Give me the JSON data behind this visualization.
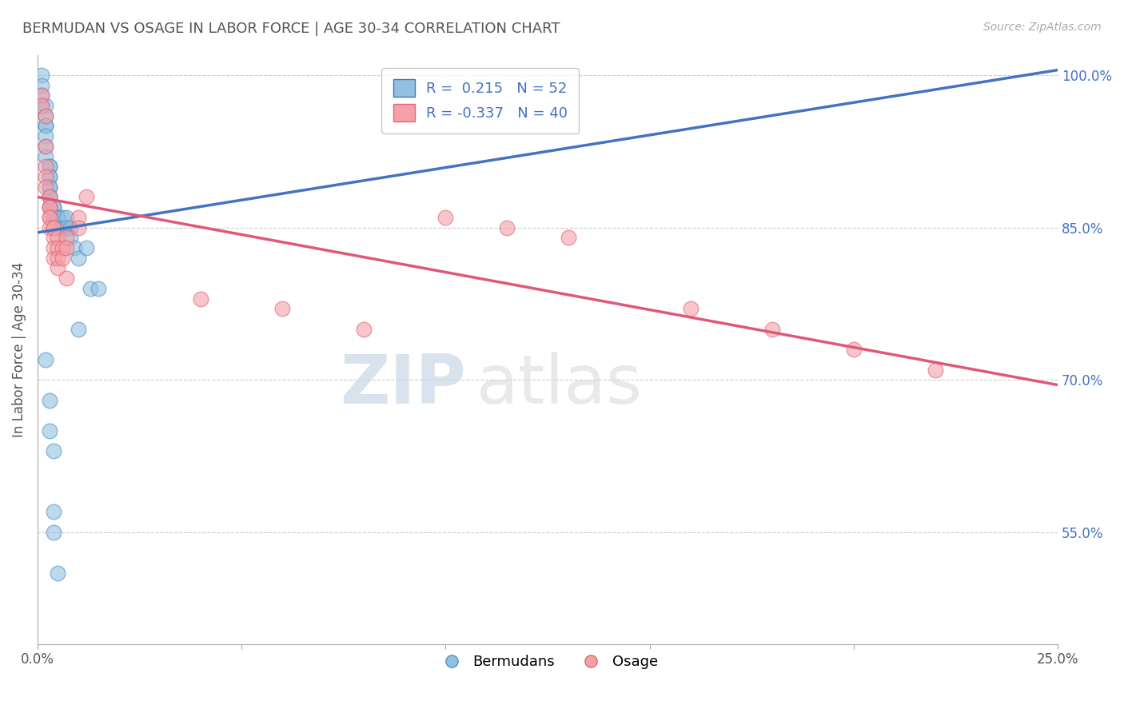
{
  "title": "BERMUDAN VS OSAGE IN LABOR FORCE | AGE 30-34 CORRELATION CHART",
  "source": "Source: ZipAtlas.com",
  "ylabel": "In Labor Force | Age 30-34",
  "xlim": [
    0.0,
    0.25
  ],
  "ylim": [
    0.44,
    1.02
  ],
  "xticks": [
    0.0,
    0.05,
    0.1,
    0.15,
    0.2,
    0.25
  ],
  "xticklabels": [
    "0.0%",
    "",
    "",
    "",
    "",
    "25.0%"
  ],
  "yticks_right": [
    0.55,
    0.7,
    0.85,
    1.0
  ],
  "ytick_right_labels": [
    "55.0%",
    "70.0%",
    "85.0%",
    "100.0%"
  ],
  "blue_color": "#92c0e0",
  "pink_color": "#f4a0a8",
  "blue_edge_color": "#5590c8",
  "pink_edge_color": "#e06878",
  "blue_line_color": "#4472c4",
  "pink_line_color": "#e05878",
  "R_blue": 0.215,
  "N_blue": 52,
  "R_pink": -0.337,
  "N_pink": 40,
  "legend_label_blue": "Bermudans",
  "legend_label_pink": "Osage",
  "blue_x": [
    0.001,
    0.001,
    0.001,
    0.001,
    0.002,
    0.002,
    0.002,
    0.002,
    0.002,
    0.002,
    0.002,
    0.003,
    0.003,
    0.003,
    0.003,
    0.003,
    0.003,
    0.003,
    0.003,
    0.003,
    0.004,
    0.004,
    0.004,
    0.004,
    0.004,
    0.004,
    0.004,
    0.005,
    0.005,
    0.005,
    0.005,
    0.006,
    0.006,
    0.006,
    0.006,
    0.007,
    0.007,
    0.008,
    0.008,
    0.009,
    0.01,
    0.01,
    0.012,
    0.013,
    0.015,
    0.002,
    0.003,
    0.003,
    0.004,
    0.004,
    0.004,
    0.005
  ],
  "blue_y": [
    1.0,
    0.99,
    0.98,
    0.97,
    0.97,
    0.96,
    0.95,
    0.95,
    0.94,
    0.93,
    0.92,
    0.91,
    0.91,
    0.9,
    0.9,
    0.89,
    0.89,
    0.88,
    0.88,
    0.87,
    0.87,
    0.87,
    0.86,
    0.86,
    0.86,
    0.86,
    0.86,
    0.86,
    0.86,
    0.86,
    0.85,
    0.86,
    0.85,
    0.85,
    0.85,
    0.86,
    0.85,
    0.85,
    0.84,
    0.83,
    0.82,
    0.75,
    0.83,
    0.79,
    0.79,
    0.72,
    0.68,
    0.65,
    0.63,
    0.57,
    0.55,
    0.51
  ],
  "pink_x": [
    0.001,
    0.001,
    0.002,
    0.002,
    0.002,
    0.002,
    0.002,
    0.003,
    0.003,
    0.003,
    0.003,
    0.003,
    0.003,
    0.004,
    0.004,
    0.004,
    0.004,
    0.004,
    0.005,
    0.005,
    0.005,
    0.005,
    0.006,
    0.006,
    0.007,
    0.007,
    0.007,
    0.01,
    0.01,
    0.012,
    0.04,
    0.06,
    0.08,
    0.1,
    0.115,
    0.13,
    0.16,
    0.18,
    0.2,
    0.22
  ],
  "pink_y": [
    0.98,
    0.97,
    0.96,
    0.93,
    0.91,
    0.9,
    0.89,
    0.88,
    0.87,
    0.87,
    0.86,
    0.86,
    0.85,
    0.85,
    0.85,
    0.84,
    0.83,
    0.82,
    0.84,
    0.83,
    0.82,
    0.81,
    0.83,
    0.82,
    0.84,
    0.83,
    0.8,
    0.86,
    0.85,
    0.88,
    0.78,
    0.77,
    0.75,
    0.86,
    0.85,
    0.84,
    0.77,
    0.75,
    0.73,
    0.71
  ],
  "blue_trend_x": [
    0.0,
    0.25
  ],
  "blue_trend_y": [
    0.845,
    1.005
  ],
  "pink_trend_x": [
    0.0,
    0.25
  ],
  "pink_trend_y": [
    0.88,
    0.695
  ],
  "watermark_zip": "ZIP",
  "watermark_atlas": "atlas",
  "background_color": "#ffffff",
  "grid_color": "#cccccc",
  "title_color": "#555555",
  "title_fontsize": 13
}
